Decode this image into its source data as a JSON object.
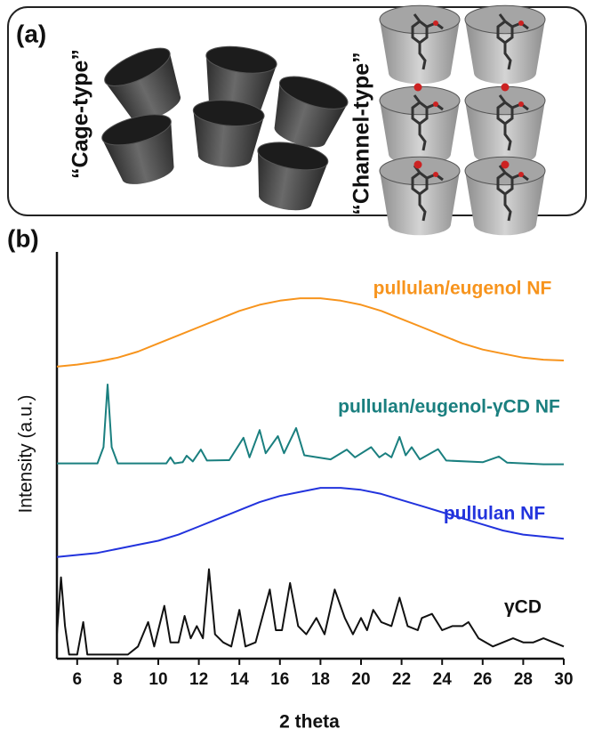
{
  "panel_a": {
    "label": "(a)",
    "left_caption": "“Cage-type”",
    "right_caption": "“Channel-type”"
  },
  "chart_data": {
    "type": "line",
    "panel_label": "(b)",
    "xlabel": "2 theta",
    "ylabel": "Intensity (a.u.)",
    "xlim": [
      5,
      30
    ],
    "ylim": [
      0,
      100
    ],
    "xticks": [
      6,
      8,
      10,
      12,
      14,
      16,
      18,
      20,
      22,
      24,
      26,
      28,
      30
    ],
    "series": [
      {
        "name": "pullulan/eugenol NF",
        "color": "#f7941d",
        "x": [
          5,
          6,
          7,
          8,
          9,
          10,
          11,
          12,
          13,
          14,
          15,
          16,
          17,
          18,
          19,
          20,
          21,
          22,
          23,
          24,
          25,
          26,
          27,
          28,
          29,
          30
        ],
        "values": [
          71.8,
          72.3,
          73,
          74,
          75.5,
          77.5,
          79.5,
          81.5,
          83.5,
          85.5,
          87,
          88,
          88.6,
          88.6,
          88,
          87,
          85.5,
          83.5,
          81.5,
          79.5,
          77.5,
          76,
          75,
          74,
          73.5,
          73.3
        ]
      },
      {
        "name": "pullulan/eugenol-γCD NF",
        "color": "#1a7f7f",
        "x": [
          5,
          7,
          7.3,
          7.5,
          7.7,
          8,
          10.4,
          10.6,
          10.8,
          11.2,
          11.4,
          11.7,
          12.1,
          12.4,
          13.5,
          14.2,
          14.5,
          15.0,
          15.3,
          15.9,
          16.2,
          16.8,
          17.2,
          18.5,
          19.3,
          19.7,
          20.5,
          20.9,
          21.2,
          21.5,
          21.9,
          22.2,
          22.5,
          22.9,
          23.8,
          24.2,
          26,
          26.8,
          27.2,
          29,
          30
        ],
        "values": [
          48,
          48,
          52,
          67.4,
          52,
          48,
          48,
          49.5,
          48,
          48.3,
          49.9,
          48.5,
          51.4,
          48.7,
          48.8,
          54.3,
          49.5,
          56.2,
          50.5,
          54.7,
          50.5,
          56.7,
          50,
          49,
          51.4,
          49.5,
          52,
          49.5,
          50.5,
          49.5,
          54.5,
          50,
          52,
          49,
          51.5,
          48.7,
          48.3,
          49.7,
          48.2,
          47.8,
          47.8
        ]
      },
      {
        "name": "pullulan NF",
        "color": "#2233dd",
        "x": [
          5,
          6,
          7,
          8,
          9,
          10,
          11,
          12,
          13,
          14,
          15,
          16,
          17,
          18,
          19,
          20,
          21,
          22,
          23,
          24,
          25,
          26,
          27,
          28,
          29,
          30
        ],
        "values": [
          25,
          25.5,
          26,
          27,
          28,
          29,
          30.5,
          32.5,
          34.5,
          36.5,
          38.5,
          40,
          41,
          42,
          42,
          41.5,
          40.5,
          39,
          37.5,
          36,
          34.5,
          33,
          31.5,
          30.5,
          30,
          29.5
        ]
      },
      {
        "name": "γCD",
        "color": "#111111",
        "x": [
          5.0,
          5.2,
          5.4,
          5.6,
          6.0,
          6.3,
          6.5,
          8.5,
          9.0,
          9.5,
          9.8,
          10.3,
          10.6,
          11.0,
          11.3,
          11.6,
          11.9,
          12.2,
          12.5,
          12.8,
          13.2,
          13.6,
          14.0,
          14.3,
          14.8,
          15.5,
          15.8,
          16.1,
          16.5,
          16.9,
          17.3,
          17.8,
          18.2,
          18.7,
          19.2,
          19.6,
          20.0,
          20.3,
          20.6,
          21.0,
          21.5,
          21.9,
          22.3,
          22.8,
          23.0,
          23.5,
          24.0,
          24.5,
          25.0,
          25.3,
          25.8,
          26.5,
          27.0,
          27.5,
          28.0,
          28.5,
          29.0,
          29.5,
          30.0
        ],
        "values": [
          6,
          20,
          8,
          1,
          1,
          9,
          1,
          1,
          3,
          9,
          3,
          13,
          4,
          4,
          10.5,
          5,
          8,
          5,
          22,
          6,
          4,
          3,
          12,
          3,
          4,
          17,
          7,
          7,
          18.6,
          8,
          6,
          10,
          6,
          17,
          10,
          6,
          10,
          7,
          12,
          9,
          8,
          15,
          8,
          7,
          10,
          11,
          7,
          8,
          8,
          9,
          5,
          3,
          4,
          5,
          4,
          4,
          5,
          4,
          3
        ]
      }
    ]
  }
}
